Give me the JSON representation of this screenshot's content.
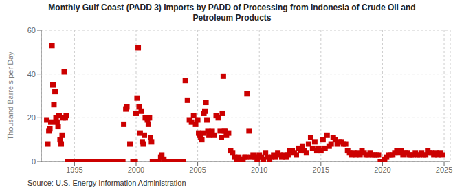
{
  "chart_data": {
    "type": "scatter",
    "title": "Monthly Gulf Coast (PADD 3) Imports by PADD of Processing from Indonesia of Crude Oil and\nPetroleum Products",
    "ylabel": "Thousand Barrels per Day",
    "source": "Source: U.S. Energy Information Administration",
    "color": "#cc0000",
    "marker": "square",
    "grid": true,
    "ylim": [
      0,
      60
    ],
    "yticks": [
      0,
      20,
      40,
      60
    ],
    "xlim": [
      1992.3,
      2025.5
    ],
    "xticks": [
      1995,
      2000,
      2005,
      2010,
      2015,
      2020,
      2025
    ],
    "x": [
      1992.75,
      1992.83,
      1992.92,
      1993.0,
      1993.08,
      1993.17,
      1993.25,
      1993.33,
      1993.42,
      1993.5,
      1993.58,
      1993.67,
      1993.75,
      1993.83,
      1993.92,
      1994.0,
      1994.08,
      1994.17,
      1994.25,
      1994.33,
      1994.42,
      1994.5,
      1994.58,
      1994.67,
      1994.75,
      1994.83,
      1994.92,
      1995.0,
      1995.08,
      1995.17,
      1995.25,
      1995.33,
      1995.42,
      1995.5,
      1995.58,
      1995.67,
      1995.75,
      1995.83,
      1995.92,
      1996.0,
      1996.08,
      1996.17,
      1996.25,
      1996.33,
      1996.42,
      1996.5,
      1996.58,
      1996.67,
      1996.75,
      1996.83,
      1996.92,
      1997.0,
      1997.08,
      1997.17,
      1997.25,
      1997.33,
      1997.42,
      1997.5,
      1997.58,
      1997.67,
      1997.75,
      1997.83,
      1997.92,
      1998.0,
      1998.08,
      1998.17,
      1998.25,
      1998.33,
      1998.42,
      1998.5,
      1998.58,
      1998.67,
      1998.75,
      1998.83,
      1998.92,
      1999.0,
      1999.17,
      1999.25,
      1999.5,
      1999.75,
      1999.92,
      2000.0,
      2000.08,
      2000.17,
      2000.25,
      2000.33,
      2000.42,
      2000.5,
      2000.58,
      2000.67,
      2000.75,
      2000.83,
      2000.92,
      2001.0,
      2001.08,
      2001.17,
      2001.25,
      2001.33,
      2001.5,
      2001.67,
      2001.83,
      2002.0,
      2002.08,
      2002.25,
      2002.5,
      2002.75,
      2002.92,
      2003.0,
      2003.17,
      2003.33,
      2003.5,
      2003.67,
      2003.83,
      2004.0,
      2004.17,
      2004.33,
      2004.5,
      2004.67,
      2004.83,
      2005.0,
      2005.08,
      2005.17,
      2005.25,
      2005.33,
      2005.42,
      2005.5,
      2005.58,
      2005.67,
      2005.75,
      2005.83,
      2005.92,
      2006.0,
      2006.17,
      2006.33,
      2006.5,
      2006.67,
      2006.83,
      2006.92,
      2007.0,
      2007.08,
      2007.17,
      2007.25,
      2007.33,
      2007.5,
      2007.67,
      2007.83,
      2008.0,
      2008.17,
      2008.33,
      2008.5,
      2008.67,
      2008.83,
      2008.92,
      2009.0,
      2009.17,
      2009.33,
      2009.5,
      2009.67,
      2009.83,
      2009.92,
      2010.0,
      2010.17,
      2010.33,
      2010.5,
      2010.67,
      2010.83,
      2011.0,
      2011.17,
      2011.33,
      2011.5,
      2011.67,
      2011.83,
      2012.0,
      2012.17,
      2012.33,
      2012.5,
      2012.67,
      2012.83,
      2013.0,
      2013.17,
      2013.33,
      2013.5,
      2013.67,
      2013.83,
      2014.0,
      2014.17,
      2014.33,
      2014.5,
      2014.67,
      2014.83,
      2015.0,
      2015.17,
      2015.33,
      2015.5,
      2015.67,
      2015.83,
      2016.0,
      2016.17,
      2016.33,
      2016.5,
      2016.67,
      2016.83,
      2017.0,
      2017.17,
      2017.33,
      2017.5,
      2017.67,
      2017.83,
      2018.0,
      2018.17,
      2018.33,
      2018.5,
      2018.67,
      2018.83,
      2019.0,
      2019.17,
      2019.33,
      2019.5,
      2019.67,
      2019.83,
      2020.0,
      2020.17,
      2020.33,
      2020.5,
      2020.67,
      2020.83,
      2021.0,
      2021.17,
      2021.33,
      2021.5,
      2021.67,
      2021.83,
      2022.0,
      2022.17,
      2022.33,
      2022.5,
      2022.67,
      2022.83,
      2023.0,
      2023.17,
      2023.33,
      2023.5,
      2023.67,
      2023.83,
      2024.0,
      2024.17,
      2024.33,
      2024.5,
      2024.67,
      2024.83
    ],
    "values": [
      19,
      8,
      14,
      15,
      18,
      53,
      35,
      26,
      32,
      20,
      18,
      16,
      21,
      10,
      8,
      12,
      20,
      41,
      20,
      21,
      0,
      0,
      0,
      0,
      0,
      0,
      0,
      0,
      0,
      0,
      0,
      0,
      0,
      0,
      0,
      0,
      0,
      0,
      0,
      0,
      0,
      0,
      0,
      0,
      0,
      0,
      0,
      0,
      0,
      0,
      0,
      0,
      0,
      0,
      0,
      0,
      0,
      0,
      0,
      0,
      0,
      0,
      0,
      0,
      0,
      0,
      0,
      0,
      0,
      0,
      0,
      0,
      0,
      0,
      0,
      17,
      24,
      25,
      8,
      0,
      0,
      22,
      29,
      52,
      25,
      13,
      23,
      9,
      8,
      12,
      20,
      20,
      19,
      17,
      20,
      11,
      9,
      0,
      0,
      0,
      0,
      2,
      3,
      1,
      0,
      0,
      0,
      0,
      0,
      0,
      0,
      0,
      0,
      37,
      28,
      19,
      18,
      21,
      17,
      19,
      13,
      12,
      11,
      10,
      13,
      22,
      23,
      27,
      19,
      14,
      12,
      13,
      14,
      12,
      21,
      20,
      14,
      11,
      22,
      39,
      14,
      14,
      12,
      13,
      5,
      4,
      2,
      1,
      2,
      1,
      1,
      2,
      2,
      31,
      14,
      2,
      3,
      2,
      1,
      2,
      3,
      2,
      1,
      4,
      2,
      1,
      2,
      3,
      2,
      4,
      3,
      2,
      3,
      2,
      3,
      5,
      5,
      4,
      3,
      6,
      5,
      7,
      5,
      4,
      8,
      11,
      6,
      9,
      5,
      6,
      5,
      10,
      6,
      12,
      7,
      8,
      11,
      10,
      8,
      9,
      9,
      8,
      8,
      5,
      4,
      3,
      4,
      3,
      4,
      3,
      5,
      4,
      3,
      3,
      4,
      3,
      3,
      3,
      3,
      0,
      0,
      1,
      2,
      3,
      3,
      3,
      4,
      5,
      4,
      5,
      3,
      4,
      4,
      3,
      3,
      3,
      4,
      3,
      3,
      4,
      3,
      3,
      5,
      4,
      4,
      3,
      4,
      3,
      4,
      3
    ]
  }
}
